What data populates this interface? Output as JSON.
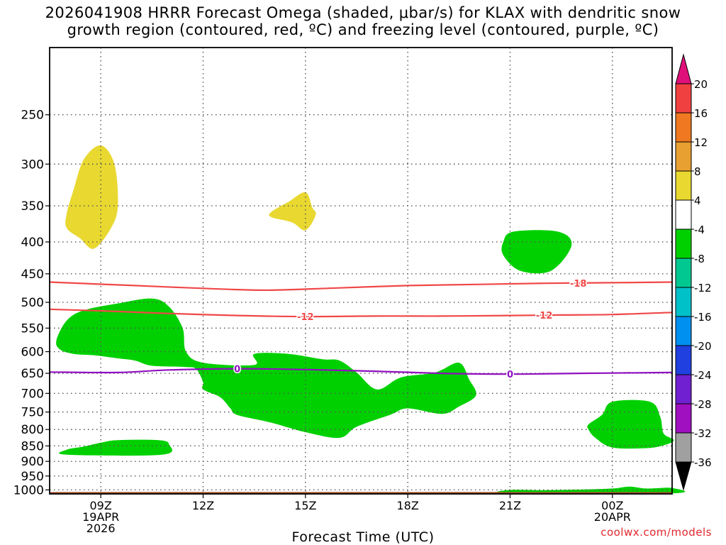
{
  "title_line1": "2026041908 HRRR Forecast Omega (shaded, μbar/s) for KLAX with dendritic snow",
  "title_line2": "growth region (contoured, red, ºC) and freezing level (contoured, purple, ºC)",
  "credit": "coolwx.com/models",
  "chart_data": {
    "type": "heatmap",
    "xlabel": "Forecast Time (UTC)",
    "ylabel": "",
    "y_scale": "log-pressure (inverted)",
    "ylim": [
      1015,
      195
    ],
    "xlim_hours": [
      7.5,
      25.75
    ],
    "grid": true,
    "y_ticks": [
      250,
      300,
      350,
      400,
      450,
      500,
      550,
      600,
      650,
      700,
      750,
      800,
      850,
      900,
      950,
      1000
    ],
    "x_ticks": [
      {
        "hour": 9,
        "lines": [
          "09Z",
          "19APR",
          "2026"
        ]
      },
      {
        "hour": 12,
        "lines": [
          "12Z"
        ]
      },
      {
        "hour": 15,
        "lines": [
          "15Z"
        ]
      },
      {
        "hour": 18,
        "lines": [
          "18Z"
        ]
      },
      {
        "hour": 21,
        "lines": [
          "21Z"
        ]
      },
      {
        "hour": 24,
        "lines": [
          "00Z",
          "20APR"
        ]
      }
    ],
    "colorbar": {
      "ticks": [
        "20",
        "16",
        "12",
        "8",
        "4",
        "-4",
        "-8",
        "-12",
        "-16",
        "-20",
        "-24",
        "-28",
        "-32",
        "-36"
      ],
      "bands": [
        {
          "from": 16,
          "to": 20,
          "color": "#f04040"
        },
        {
          "from": 12,
          "to": 16,
          "color": "#f07820"
        },
        {
          "from": 8,
          "to": 12,
          "color": "#e8a030"
        },
        {
          "from": 4,
          "to": 8,
          "color": "#e8d830"
        },
        {
          "from": -4,
          "to": 4,
          "color": "#ffffff"
        },
        {
          "from": -8,
          "to": -4,
          "color": "#00d000"
        },
        {
          "from": -12,
          "to": -8,
          "color": "#00c890"
        },
        {
          "from": -16,
          "to": -12,
          "color": "#00c0c8"
        },
        {
          "from": -20,
          "to": -16,
          "color": "#0090f0"
        },
        {
          "from": -24,
          "to": -20,
          "color": "#2040e0"
        },
        {
          "from": -28,
          "to": -24,
          "color": "#7020d0"
        },
        {
          "from": -32,
          "to": -28,
          "color": "#a010c0"
        },
        {
          "from": -36,
          "to": -32,
          "color": "#a0a0a0"
        }
      ],
      "over_color": "#e0107a",
      "under_color": "#000000"
    },
    "shaded_regions": [
      {
        "name": "yellow-upper-left",
        "color": "#e8d830",
        "points": [
          [
            8.0,
            360
          ],
          [
            8.2,
            330
          ],
          [
            8.5,
            295
          ],
          [
            9.0,
            280
          ],
          [
            9.4,
            300
          ],
          [
            9.5,
            350
          ],
          [
            9.3,
            380
          ],
          [
            8.8,
            410
          ],
          [
            8.4,
            395
          ],
          [
            8.0,
            380
          ]
        ]
      },
      {
        "name": "yellow-mid",
        "color": "#e8d830",
        "points": [
          [
            14.0,
            358
          ],
          [
            14.5,
            345
          ],
          [
            15.0,
            333
          ],
          [
            15.2,
            352
          ],
          [
            15.3,
            362
          ],
          [
            15.0,
            383
          ],
          [
            14.6,
            372
          ],
          [
            14.0,
            365
          ]
        ]
      },
      {
        "name": "green-upper-right",
        "color": "#00d000",
        "points": [
          [
            20.8,
            400
          ],
          [
            21.1,
            385
          ],
          [
            22.4,
            385
          ],
          [
            22.8,
            405
          ],
          [
            22.2,
            445
          ],
          [
            21.3,
            445
          ],
          [
            20.8,
            420
          ]
        ]
      },
      {
        "name": "green-main-left",
        "color": "#00d000",
        "points": [
          [
            7.7,
            575
          ],
          [
            8.0,
            535
          ],
          [
            8.5,
            515
          ],
          [
            9.5,
            502
          ],
          [
            10.5,
            493
          ],
          [
            11.0,
            508
          ],
          [
            11.4,
            550
          ],
          [
            11.5,
            600
          ],
          [
            12.0,
            625
          ],
          [
            13.5,
            630
          ],
          [
            13.5,
            605
          ],
          [
            14.5,
            605
          ],
          [
            15.5,
            617
          ],
          [
            16.0,
            620
          ],
          [
            16.5,
            648
          ],
          [
            17.1,
            690
          ],
          [
            17.8,
            660
          ],
          [
            18.8,
            648
          ],
          [
            19.5,
            625
          ],
          [
            19.8,
            665
          ],
          [
            20.0,
            705
          ],
          [
            19.5,
            735
          ],
          [
            19.0,
            755
          ],
          [
            18.0,
            740
          ],
          [
            17.5,
            757
          ],
          [
            16.5,
            792
          ],
          [
            16.0,
            825
          ],
          [
            15.0,
            808
          ],
          [
            14.0,
            780
          ],
          [
            13.0,
            758
          ],
          [
            12.8,
            740
          ],
          [
            12.5,
            710
          ],
          [
            12.0,
            690
          ],
          [
            12.0,
            672
          ],
          [
            11.8,
            640
          ],
          [
            11.5,
            635
          ],
          [
            10.5,
            632
          ],
          [
            10.0,
            620
          ],
          [
            9.5,
            615
          ],
          [
            8.8,
            608
          ],
          [
            8.2,
            605
          ],
          [
            7.8,
            595
          ]
        ]
      },
      {
        "name": "green-lower-left",
        "color": "#00d000",
        "points": [
          [
            8.0,
            862
          ],
          [
            8.5,
            852
          ],
          [
            9.0,
            840
          ],
          [
            9.5,
            832
          ],
          [
            10.7,
            832
          ],
          [
            11.0,
            845
          ],
          [
            10.8,
            878
          ],
          [
            8.0,
            878
          ]
        ]
      },
      {
        "name": "green-lower-right",
        "color": "#00d000",
        "points": [
          [
            23.3,
            785
          ],
          [
            23.7,
            757
          ],
          [
            24.0,
            722
          ],
          [
            25.1,
            722
          ],
          [
            25.4,
            763
          ],
          [
            25.5,
            812
          ],
          [
            25.8,
            832
          ],
          [
            25.5,
            848
          ],
          [
            25.0,
            857
          ],
          [
            24.0,
            855
          ],
          [
            23.5,
            825
          ],
          [
            23.3,
            800
          ]
        ]
      },
      {
        "name": "green-near-surface",
        "color": "#00d000",
        "points": [
          [
            21.0,
            1000
          ],
          [
            22.0,
            1001
          ],
          [
            23.0,
            999
          ],
          [
            24.0,
            995
          ],
          [
            24.5,
            988
          ],
          [
            25.0,
            995
          ],
          [
            25.75,
            993
          ],
          [
            25.75,
            1013
          ],
          [
            21.0,
            1013
          ]
        ]
      }
    ],
    "contours": [
      {
        "name": "dgz-minus-18",
        "color": "#f04848",
        "label": "-18",
        "label_hour": 23.0,
        "points": [
          [
            7.5,
            464
          ],
          [
            10.0,
            470
          ],
          [
            12.5,
            476
          ],
          [
            14.0,
            478
          ],
          [
            16.0,
            474
          ],
          [
            18.0,
            470
          ],
          [
            20.0,
            468
          ],
          [
            22.0,
            466
          ],
          [
            24.0,
            465
          ],
          [
            25.75,
            464
          ]
        ]
      },
      {
        "name": "dgz-minus-12",
        "color": "#f04848",
        "label": "-12",
        "labels_at": [
          15.0,
          22.0
        ],
        "points": [
          [
            7.5,
            513
          ],
          [
            9.0,
            516
          ],
          [
            11.0,
            521
          ],
          [
            13.0,
            525
          ],
          [
            15.0,
            527
          ],
          [
            17.0,
            526
          ],
          [
            19.0,
            526
          ],
          [
            21.0,
            525
          ],
          [
            22.5,
            524
          ],
          [
            24.0,
            523
          ],
          [
            25.75,
            519
          ]
        ]
      },
      {
        "name": "freezing-level",
        "color": "#9010c0",
        "label": "0",
        "labels_at": [
          13.0,
          21.0
        ],
        "points": [
          [
            7.5,
            647
          ],
          [
            9.5,
            648
          ],
          [
            11.0,
            642
          ],
          [
            13.0,
            639
          ],
          [
            15.0,
            641
          ],
          [
            17.0,
            645
          ],
          [
            19.0,
            650
          ],
          [
            21.0,
            652
          ],
          [
            23.0,
            650
          ],
          [
            25.75,
            648
          ]
        ]
      }
    ],
    "ground_color": "#a0522d"
  }
}
